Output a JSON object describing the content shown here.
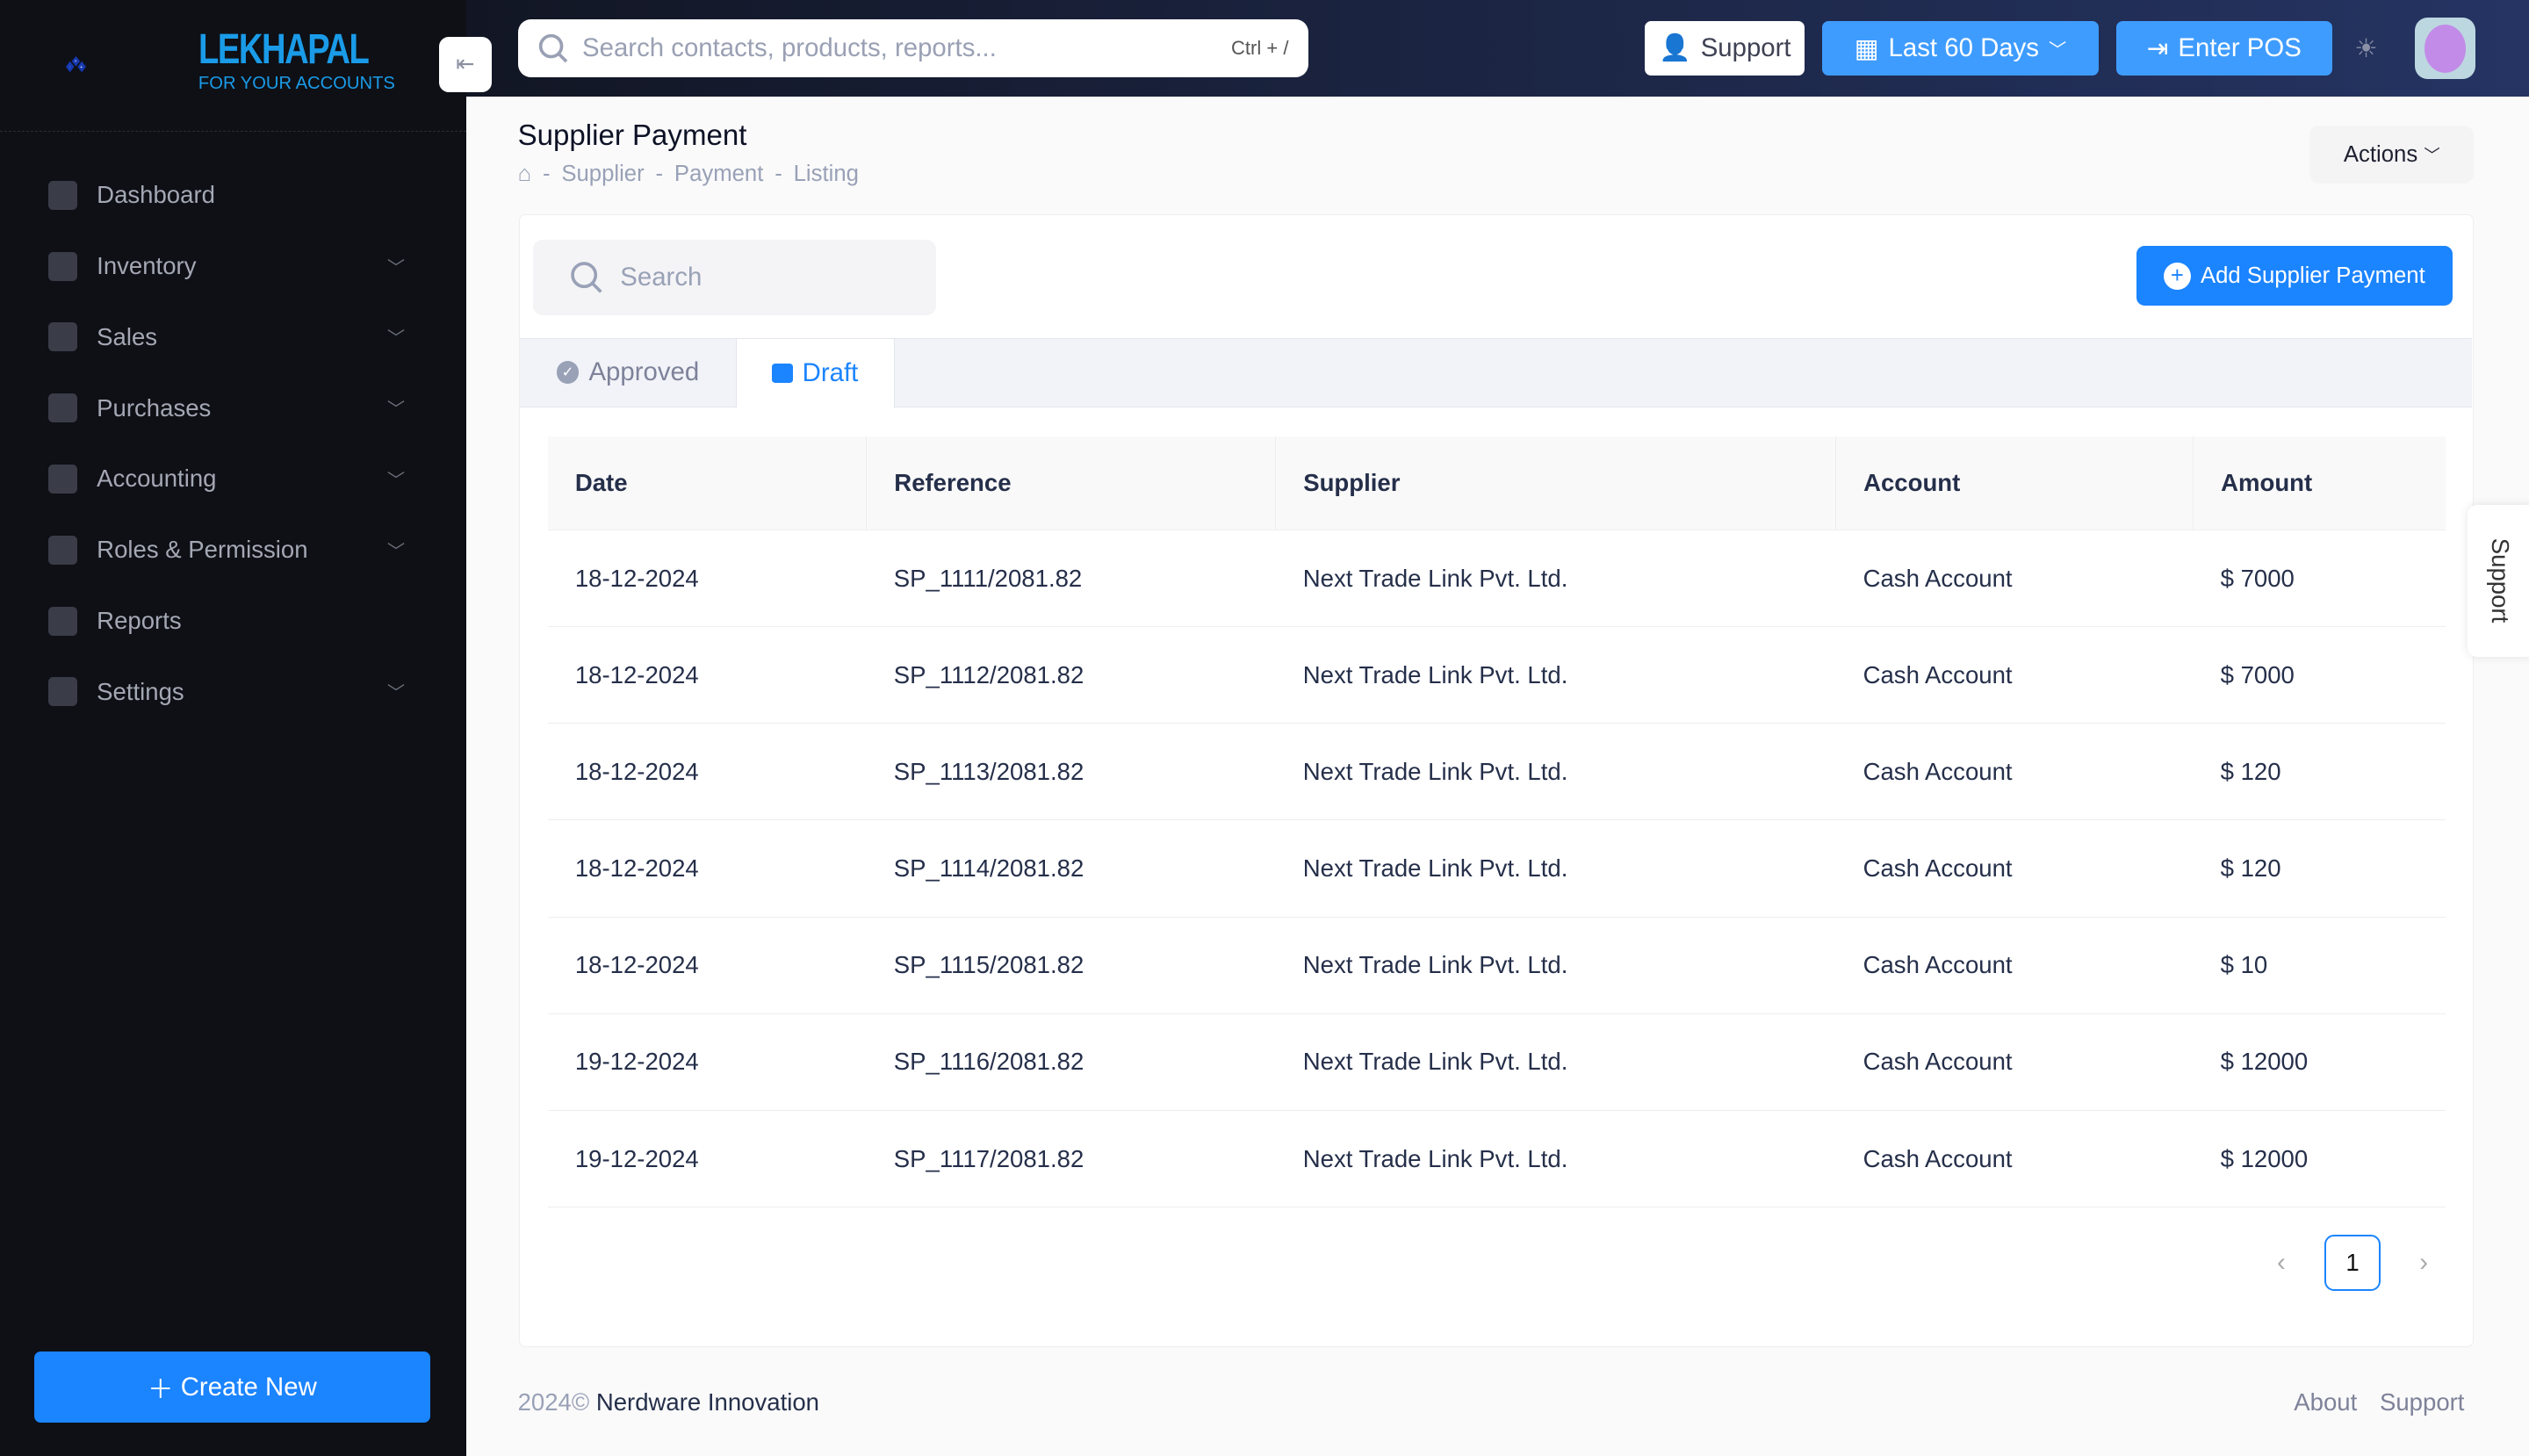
{
  "brand": {
    "name": "LEKHAPAL",
    "tagline": "FOR YOUR ACCOUNTS"
  },
  "sidebar": {
    "items": [
      {
        "label": "Dashboard",
        "icon": "grid-icon",
        "expandable": false
      },
      {
        "label": "Inventory",
        "icon": "box-icon",
        "expandable": true
      },
      {
        "label": "Sales",
        "icon": "cash-icon",
        "expandable": true
      },
      {
        "label": "Purchases",
        "icon": "handshake-icon",
        "expandable": true
      },
      {
        "label": "Accounting",
        "icon": "bank-icon",
        "expandable": true
      },
      {
        "label": "Roles & Permission",
        "icon": "bank-icon",
        "expandable": true
      },
      {
        "label": "Reports",
        "icon": "chart-icon",
        "expandable": false
      },
      {
        "label": "Settings",
        "icon": "gear-icon",
        "expandable": true
      }
    ],
    "create_new": "Create New"
  },
  "topbar": {
    "search_placeholder": "Search contacts, products, reports...",
    "shortcut": "Ctrl + /",
    "support": "Support",
    "date_range": "Last 60 Days",
    "enter_pos": "Enter POS"
  },
  "page": {
    "title": "Supplier Payment",
    "breadcrumb": [
      "Supplier",
      "Payment",
      "Listing"
    ],
    "actions": "Actions"
  },
  "list": {
    "search_placeholder": "Search",
    "add_button": "Add Supplier Payment",
    "tabs": [
      {
        "label": "Approved",
        "active": false
      },
      {
        "label": "Draft",
        "active": true
      }
    ],
    "columns": [
      "Date",
      "Reference",
      "Supplier",
      "Account",
      "Amount"
    ],
    "rows": [
      [
        "18-12-2024",
        "SP_1111/2081.82",
        "Next Trade Link Pvt. Ltd.",
        "Cash Account",
        "$ 7000"
      ],
      [
        "18-12-2024",
        "SP_1112/2081.82",
        "Next Trade Link Pvt. Ltd.",
        "Cash Account",
        "$ 7000"
      ],
      [
        "18-12-2024",
        "SP_1113/2081.82",
        "Next Trade Link Pvt. Ltd.",
        "Cash Account",
        "$ 120"
      ],
      [
        "18-12-2024",
        "SP_1114/2081.82",
        "Next Trade Link Pvt. Ltd.",
        "Cash Account",
        "$ 120"
      ],
      [
        "18-12-2024",
        "SP_1115/2081.82",
        "Next Trade Link Pvt. Ltd.",
        "Cash Account",
        "$ 10"
      ],
      [
        "19-12-2024",
        "SP_1116/2081.82",
        "Next Trade Link Pvt. Ltd.",
        "Cash Account",
        "$ 12000"
      ],
      [
        "19-12-2024",
        "SP_1117/2081.82",
        "Next Trade Link Pvt. Ltd.",
        "Cash Account",
        "$ 12000"
      ]
    ],
    "current_page": "1"
  },
  "support_tab": "Support",
  "footer": {
    "year": "2024©",
    "company": "Nerdware Innovation",
    "links": [
      "About",
      "Support"
    ]
  },
  "colors": {
    "accent": "#1b84ff",
    "sidebar_bg": "#0e1016",
    "brand": "#1a9be8"
  }
}
